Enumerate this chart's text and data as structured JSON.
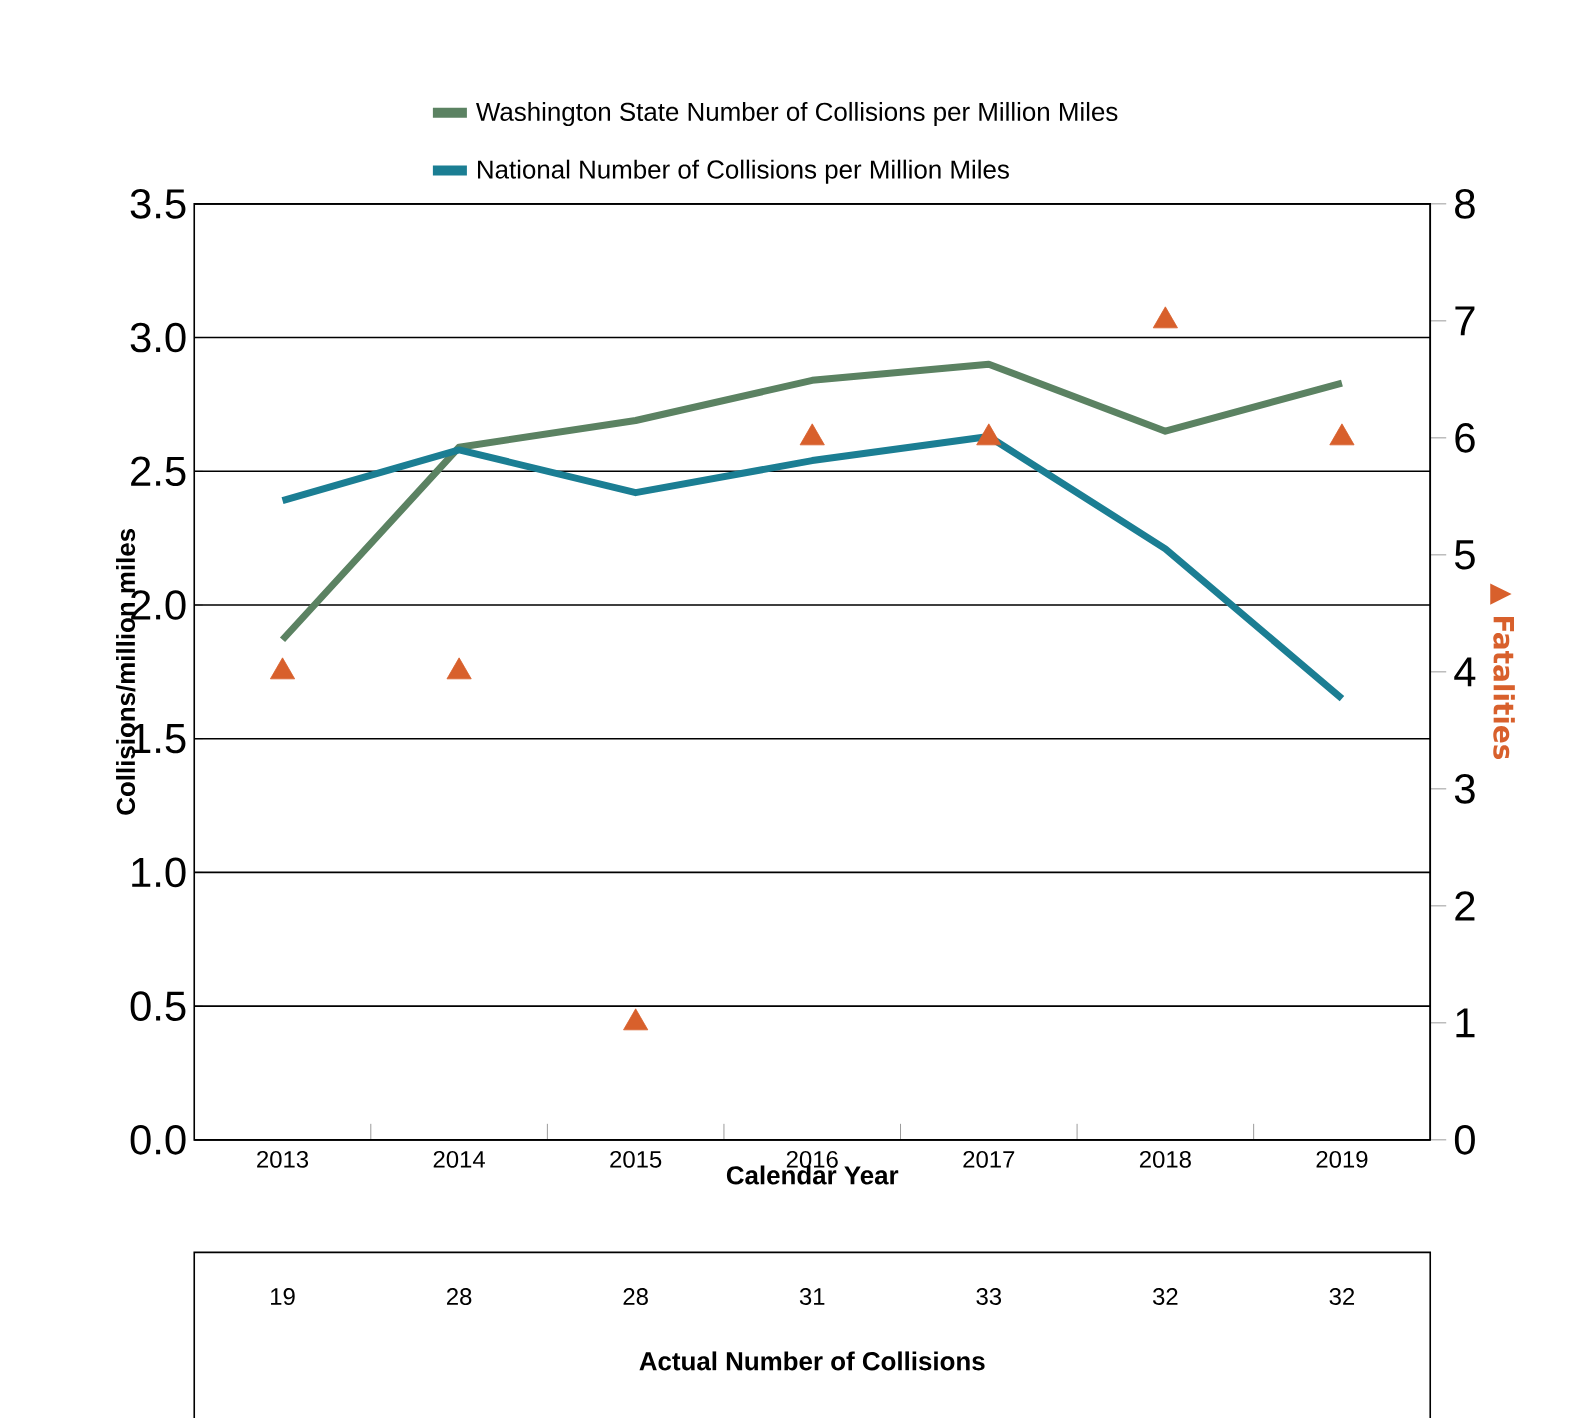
{
  "chart_data": [
    {
      "type": "line",
      "categories": [
        "2013",
        "2014",
        "2015",
        "2016",
        "2017",
        "2018",
        "2019"
      ],
      "xlabel": "Calendar Year",
      "ylabel": "Collisions/million miles",
      "y2label": "▲ Fatalities",
      "ylim": [
        0,
        3.5
      ],
      "yticks": [
        {
          "value": 0,
          "label": "0.0"
        },
        {
          "value": 0.5,
          "label": "0.5"
        },
        {
          "value": 1,
          "label": "1.0"
        },
        {
          "value": 1.5,
          "label": "1.5"
        },
        {
          "value": 2,
          "label": "2.0"
        },
        {
          "value": 2.5,
          "label": "2.5"
        },
        {
          "value": 3,
          "label": "3.0"
        },
        {
          "value": 3.5,
          "label": "3.5"
        }
      ],
      "y2lim": [
        0,
        8
      ],
      "y2ticks": [
        0,
        1,
        2,
        3,
        4,
        5,
        6,
        7,
        8
      ],
      "grid": "y",
      "legend": "top",
      "series": [
        {
          "name": "Washington State Number of Collisions per Million Miles",
          "color": "#5b8262",
          "values": [
            1.87,
            2.59,
            2.69,
            2.84,
            2.9,
            2.65,
            2.83
          ]
        },
        {
          "name": "National Number of Collisions per Million Miles",
          "color": "#1b7e93",
          "values": [
            2.39,
            2.58,
            2.42,
            2.54,
            2.63,
            2.21,
            1.65
          ]
        },
        {
          "type": "scatter",
          "axis": "y2",
          "marker": "triangle",
          "color": "#d8602c",
          "values": [
            4,
            4,
            1,
            6,
            6,
            7,
            6
          ]
        }
      ]
    },
    {
      "type": "other",
      "categories": [
        null,
        null,
        null,
        null,
        null,
        null,
        null
      ],
      "values": [
        19,
        28,
        28,
        31,
        33,
        32,
        32
      ],
      "xlabel": "Actual Number of Collisions",
      "data_labels": true
    }
  ]
}
